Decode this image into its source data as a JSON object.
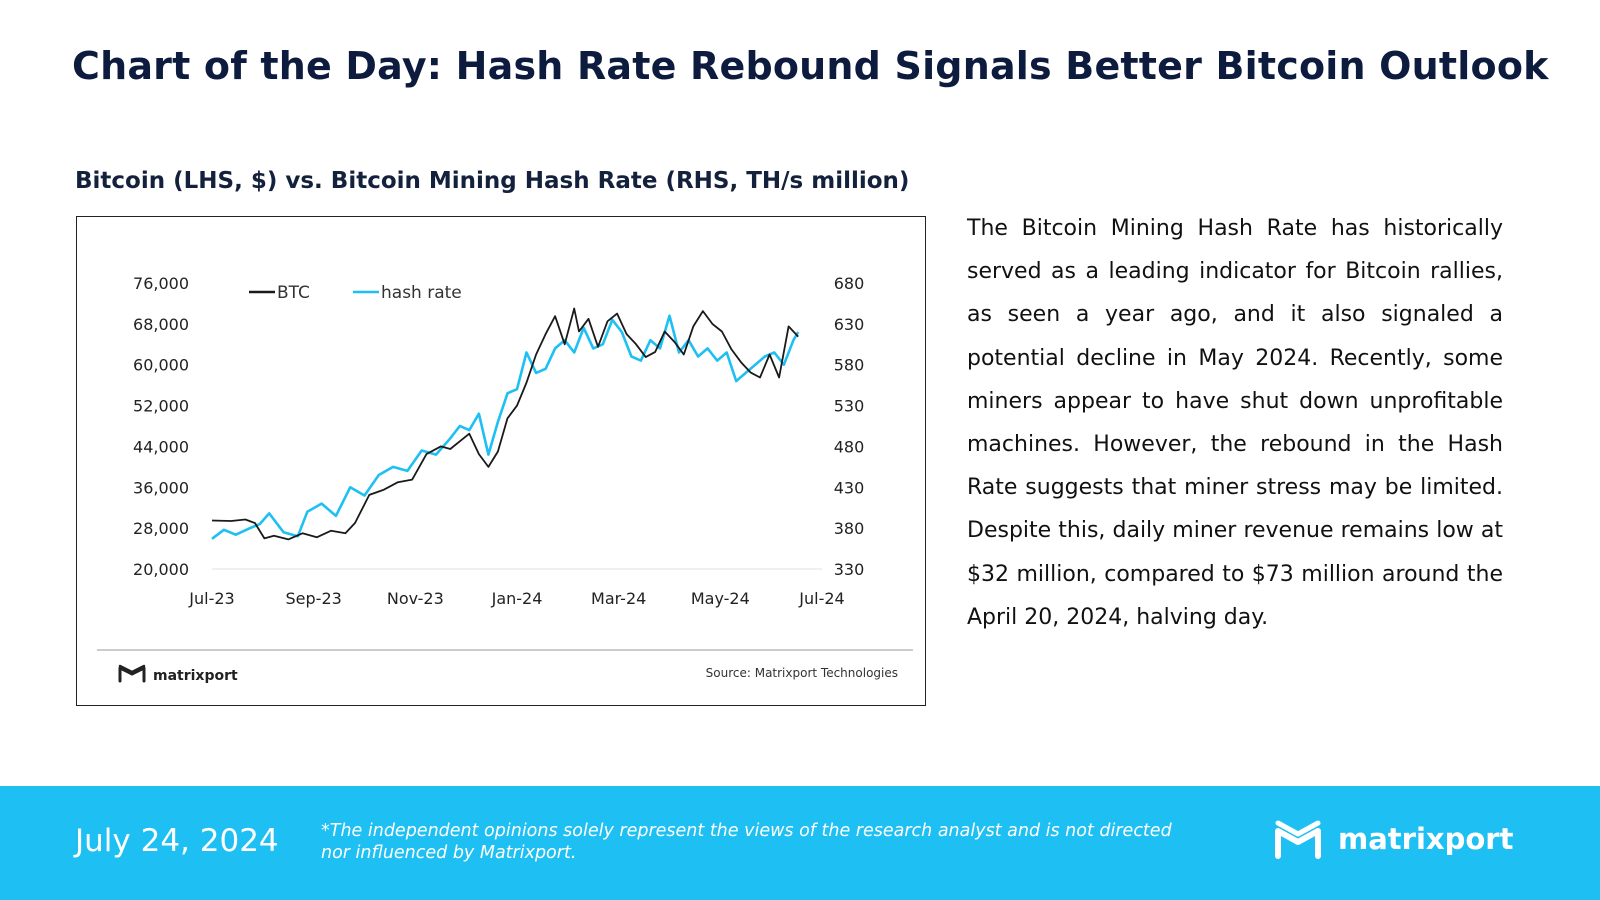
{
  "page": {
    "title": "Chart of the Day: Hash Rate Rebound Signals Better Bitcoin Outlook",
    "chart_heading": "Bitcoin (LHS, $) vs. Bitcoin Mining Hash Rate (RHS, TH/s million)",
    "body_text": "The Bitcoin Mining Hash Rate has historically served as a leading indicator for Bitcoin rallies, as seen a year ago, and it also signaled a potential decline in May 2024. Recently, some miners appear to have shut down unprofitable machines. However, the rebound in the Hash Rate suggests that miner stress may be limited. Despite this, daily miner revenue remains low at $32 million, compared to $73 million around the April 20, 2024, halving day."
  },
  "chart_footer": {
    "brand": "matrixport",
    "source": "Source: Matrixport Technologies"
  },
  "footer": {
    "date": "July 24, 2024",
    "disclaimer": "*The independent opinions solely represent the views of the research analyst and is not directed nor influenced by Matrixport.",
    "brand": "matrixport"
  },
  "colors": {
    "title": "#0d1b3e",
    "btc": "#1a1a1a",
    "hash_rate": "#1ec0f3",
    "footer_bg": "#1ec0f3"
  },
  "chart_data": {
    "type": "line",
    "title": "Bitcoin (LHS, $) vs. Bitcoin Mining Hash Rate (RHS, TH/s million)",
    "x_ticks": [
      "Jul-23",
      "Sep-23",
      "Nov-23",
      "Jan-24",
      "Mar-24",
      "May-24",
      "Jul-24"
    ],
    "x_range": [
      0,
      12.8
    ],
    "y_left": {
      "label": "BTC ($)",
      "range": [
        20000,
        76000
      ],
      "ticks": [
        20000,
        28000,
        36000,
        44000,
        52000,
        60000,
        68000,
        76000
      ],
      "tick_labels": [
        "20,000",
        "28,000",
        "36,000",
        "44,000",
        "52,000",
        "60,000",
        "68,000",
        "76,000"
      ]
    },
    "y_right": {
      "label": "TH/s million",
      "range": [
        330,
        680
      ],
      "ticks": [
        330,
        380,
        430,
        480,
        530,
        580,
        630,
        680
      ],
      "tick_labels": [
        "330",
        "380",
        "430",
        "480",
        "530",
        "580",
        "630",
        "680"
      ]
    },
    "legend": {
      "position": "top-left",
      "entries": [
        "BTC",
        "hash rate"
      ]
    },
    "series": [
      {
        "name": "BTC",
        "axis": "left",
        "x": [
          0,
          0.4,
          0.7,
          0.9,
          1.1,
          1.3,
          1.6,
          1.9,
          2.2,
          2.5,
          2.8,
          3.0,
          3.3,
          3.6,
          3.9,
          4.2,
          4.5,
          4.8,
          5.0,
          5.2,
          5.4,
          5.6,
          5.8,
          6.0,
          6.2,
          6.4,
          6.6,
          6.8,
          7.0,
          7.2,
          7.4,
          7.6,
          7.7,
          7.9,
          8.1,
          8.3,
          8.5,
          8.7,
          8.9,
          9.1,
          9.3,
          9.5,
          9.7,
          9.9,
          10.1,
          10.3,
          10.5,
          10.7,
          10.9,
          11.1,
          11.3,
          11.5,
          11.7,
          11.9,
          12.1,
          12.3
        ],
        "values": [
          29500,
          29400,
          29700,
          29000,
          26000,
          26500,
          25800,
          27000,
          26200,
          27500,
          27000,
          29000,
          34500,
          35500,
          37000,
          37500,
          42500,
          44000,
          43500,
          45000,
          46500,
          42500,
          40000,
          43000,
          49500,
          52000,
          56500,
          62000,
          66000,
          69500,
          64000,
          71000,
          66500,
          69000,
          63500,
          68500,
          70000,
          66000,
          64000,
          61500,
          62500,
          66500,
          64500,
          62000,
          67500,
          70500,
          68000,
          66500,
          63000,
          60500,
          58500,
          57500,
          62000,
          57500,
          67500,
          65500
        ]
      },
      {
        "name": "hash rate",
        "axis": "right",
        "x": [
          0,
          0.25,
          0.5,
          0.8,
          1.0,
          1.2,
          1.5,
          1.8,
          2.0,
          2.3,
          2.6,
          2.9,
          3.2,
          3.5,
          3.8,
          4.1,
          4.4,
          4.7,
          5.0,
          5.2,
          5.4,
          5.6,
          5.8,
          6.0,
          6.2,
          6.4,
          6.6,
          6.8,
          7.0,
          7.2,
          7.4,
          7.6,
          7.8,
          8.0,
          8.2,
          8.4,
          8.6,
          8.8,
          9.0,
          9.2,
          9.4,
          9.6,
          9.8,
          10.0,
          10.2,
          10.4,
          10.6,
          10.8,
          11.0,
          11.2,
          11.4,
          11.6,
          11.8,
          12.0,
          12.2,
          12.3
        ],
        "values": [
          367,
          378,
          372,
          380,
          385,
          398,
          375,
          370,
          400,
          410,
          395,
          430,
          420,
          445,
          455,
          450,
          475,
          470,
          490,
          505,
          500,
          520,
          470,
          510,
          545,
          550,
          595,
          570,
          575,
          600,
          610,
          595,
          625,
          600,
          605,
          635,
          620,
          590,
          585,
          610,
          600,
          640,
          595,
          610,
          590,
          600,
          585,
          595,
          560,
          570,
          580,
          590,
          595,
          580,
          610,
          620
        ]
      }
    ]
  }
}
